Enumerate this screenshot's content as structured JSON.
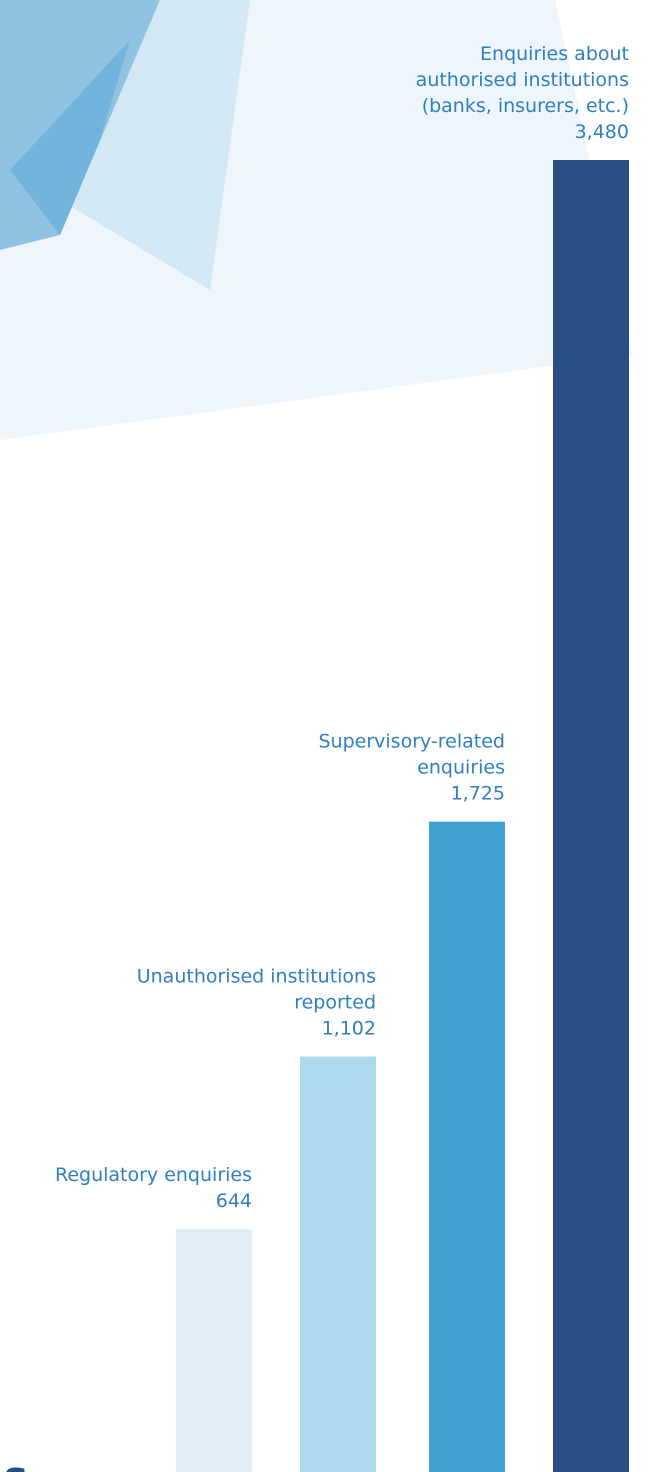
{
  "chart_data": {
    "type": "bar",
    "categories": [
      [
        "Regulatory enquiries"
      ],
      [
        "Unauthorised institutions",
        "reported"
      ],
      [
        "Supervisory-related",
        "enquiries"
      ],
      [
        "Enquiries about",
        "authorised institutions",
        "(banks, insurers, etc.)"
      ]
    ],
    "values": [
      644,
      1102,
      1725,
      3480
    ],
    "value_labels": [
      "644",
      "1,102",
      "1,725",
      "3,480"
    ],
    "colors": [
      "#e1eef8",
      "#acd9f0",
      "#3ea0d0",
      "#274f85"
    ]
  },
  "heading_fragment": "s"
}
